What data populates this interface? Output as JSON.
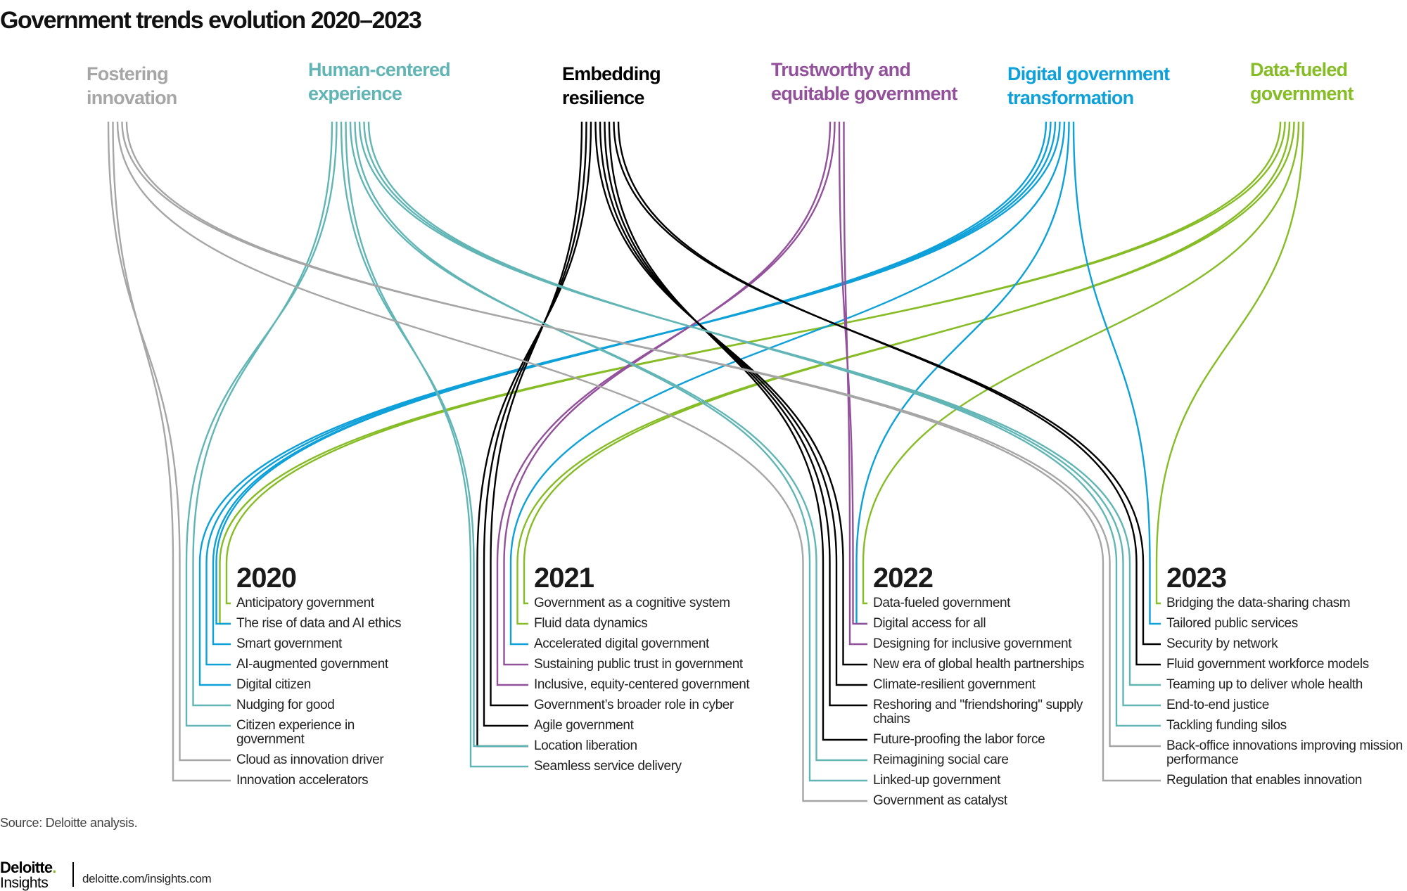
{
  "title": "Government trends evolution 2020–2023",
  "themes": [
    {
      "id": "fostering",
      "label": "Fostering\ninnovation",
      "color": "#a6a6a6"
    },
    {
      "id": "human",
      "label": "Human-centered\nexperience",
      "color": "#62b5b5"
    },
    {
      "id": "resilience",
      "label": "Embedding\nresilience",
      "color": "#000000"
    },
    {
      "id": "trust",
      "label": "Trustworthy and\nequitable government",
      "color": "#93509b"
    },
    {
      "id": "digital",
      "label": "Digital government\ntransformation",
      "color": "#0ea0d8"
    },
    {
      "id": "data",
      "label": "Data-fueled\ngovernment",
      "color": "#86bc25"
    }
  ],
  "years": [
    {
      "year": "2020",
      "items": [
        {
          "text": "Anticipatory government",
          "themes": [
            "data"
          ]
        },
        {
          "text": "The rise of data and AI ethics",
          "themes": [
            "data",
            "digital"
          ]
        },
        {
          "text": "Smart government",
          "themes": [
            "digital"
          ]
        },
        {
          "text": "AI-augmented government",
          "themes": [
            "digital"
          ]
        },
        {
          "text": "Digital citizen",
          "themes": [
            "digital"
          ]
        },
        {
          "text": "Nudging for good",
          "themes": [
            "human"
          ]
        },
        {
          "text": "Citizen experience in government",
          "themes": [
            "human"
          ]
        },
        {
          "text": "Cloud as innovation driver",
          "themes": [
            "fostering"
          ]
        },
        {
          "text": "Innovation accelerators",
          "themes": [
            "fostering"
          ]
        }
      ]
    },
    {
      "year": "2021",
      "items": [
        {
          "text": "Government as a cognitive system",
          "themes": [
            "data"
          ]
        },
        {
          "text": "Fluid data dynamics",
          "themes": [
            "data"
          ]
        },
        {
          "text": "Accelerated digital government",
          "themes": [
            "digital"
          ]
        },
        {
          "text": "Sustaining public trust in government",
          "themes": [
            "trust"
          ]
        },
        {
          "text": "Inclusive, equity-centered government",
          "themes": [
            "trust"
          ]
        },
        {
          "text": "Government’s broader role in cyber",
          "themes": [
            "resilience"
          ]
        },
        {
          "text": "Agile government",
          "themes": [
            "resilience"
          ]
        },
        {
          "text": "Location liberation",
          "themes": [
            "resilience",
            "human"
          ]
        },
        {
          "text": "Seamless service delivery",
          "themes": [
            "human"
          ]
        }
      ]
    },
    {
      "year": "2022",
      "items": [
        {
          "text": "Data-fueled government",
          "themes": [
            "data"
          ]
        },
        {
          "text": "Digital access for all",
          "themes": [
            "digital",
            "trust"
          ]
        },
        {
          "text": "Designing for inclusive government",
          "themes": [
            "trust"
          ]
        },
        {
          "text": "New era of global health  partnerships",
          "themes": [
            "resilience"
          ]
        },
        {
          "text": "Climate-resilient government",
          "themes": [
            "resilience"
          ]
        },
        {
          "text": "Reshoring and \"friendshoring\" supply chains",
          "themes": [
            "resilience"
          ]
        },
        {
          "text": "Future-proofing the labor force",
          "themes": [
            "resilience"
          ]
        },
        {
          "text": "Reimagining social care",
          "themes": [
            "human"
          ]
        },
        {
          "text": "Linked-up government",
          "themes": [
            "human"
          ]
        },
        {
          "text": "Government as catalyst",
          "themes": [
            "fostering"
          ]
        }
      ]
    },
    {
      "year": "2023",
      "items": [
        {
          "text": "Bridging the data-sharing chasm",
          "themes": [
            "data"
          ]
        },
        {
          "text": "Tailored public services",
          "themes": [
            "digital"
          ]
        },
        {
          "text": "Security by network",
          "themes": [
            "resilience"
          ]
        },
        {
          "text": "Fluid government workforce models",
          "themes": [
            "resilience"
          ]
        },
        {
          "text": "Teaming up to deliver whole health",
          "themes": [
            "human"
          ]
        },
        {
          "text": "End-to-end justice",
          "themes": [
            "human"
          ]
        },
        {
          "text": "Tackling funding silos",
          "themes": [
            "human"
          ]
        },
        {
          "text": "Back-office innovations improving mission performance",
          "themes": [
            "fostering"
          ]
        },
        {
          "text": "Regulation that enables innovation",
          "themes": [
            "fostering"
          ]
        }
      ]
    }
  ],
  "source": "Source: Deloitte analysis.",
  "logo": {
    "brand": "Deloitte",
    "dot": ".",
    "sub": "Insights"
  },
  "site": "deloitte.com/insights.com"
}
